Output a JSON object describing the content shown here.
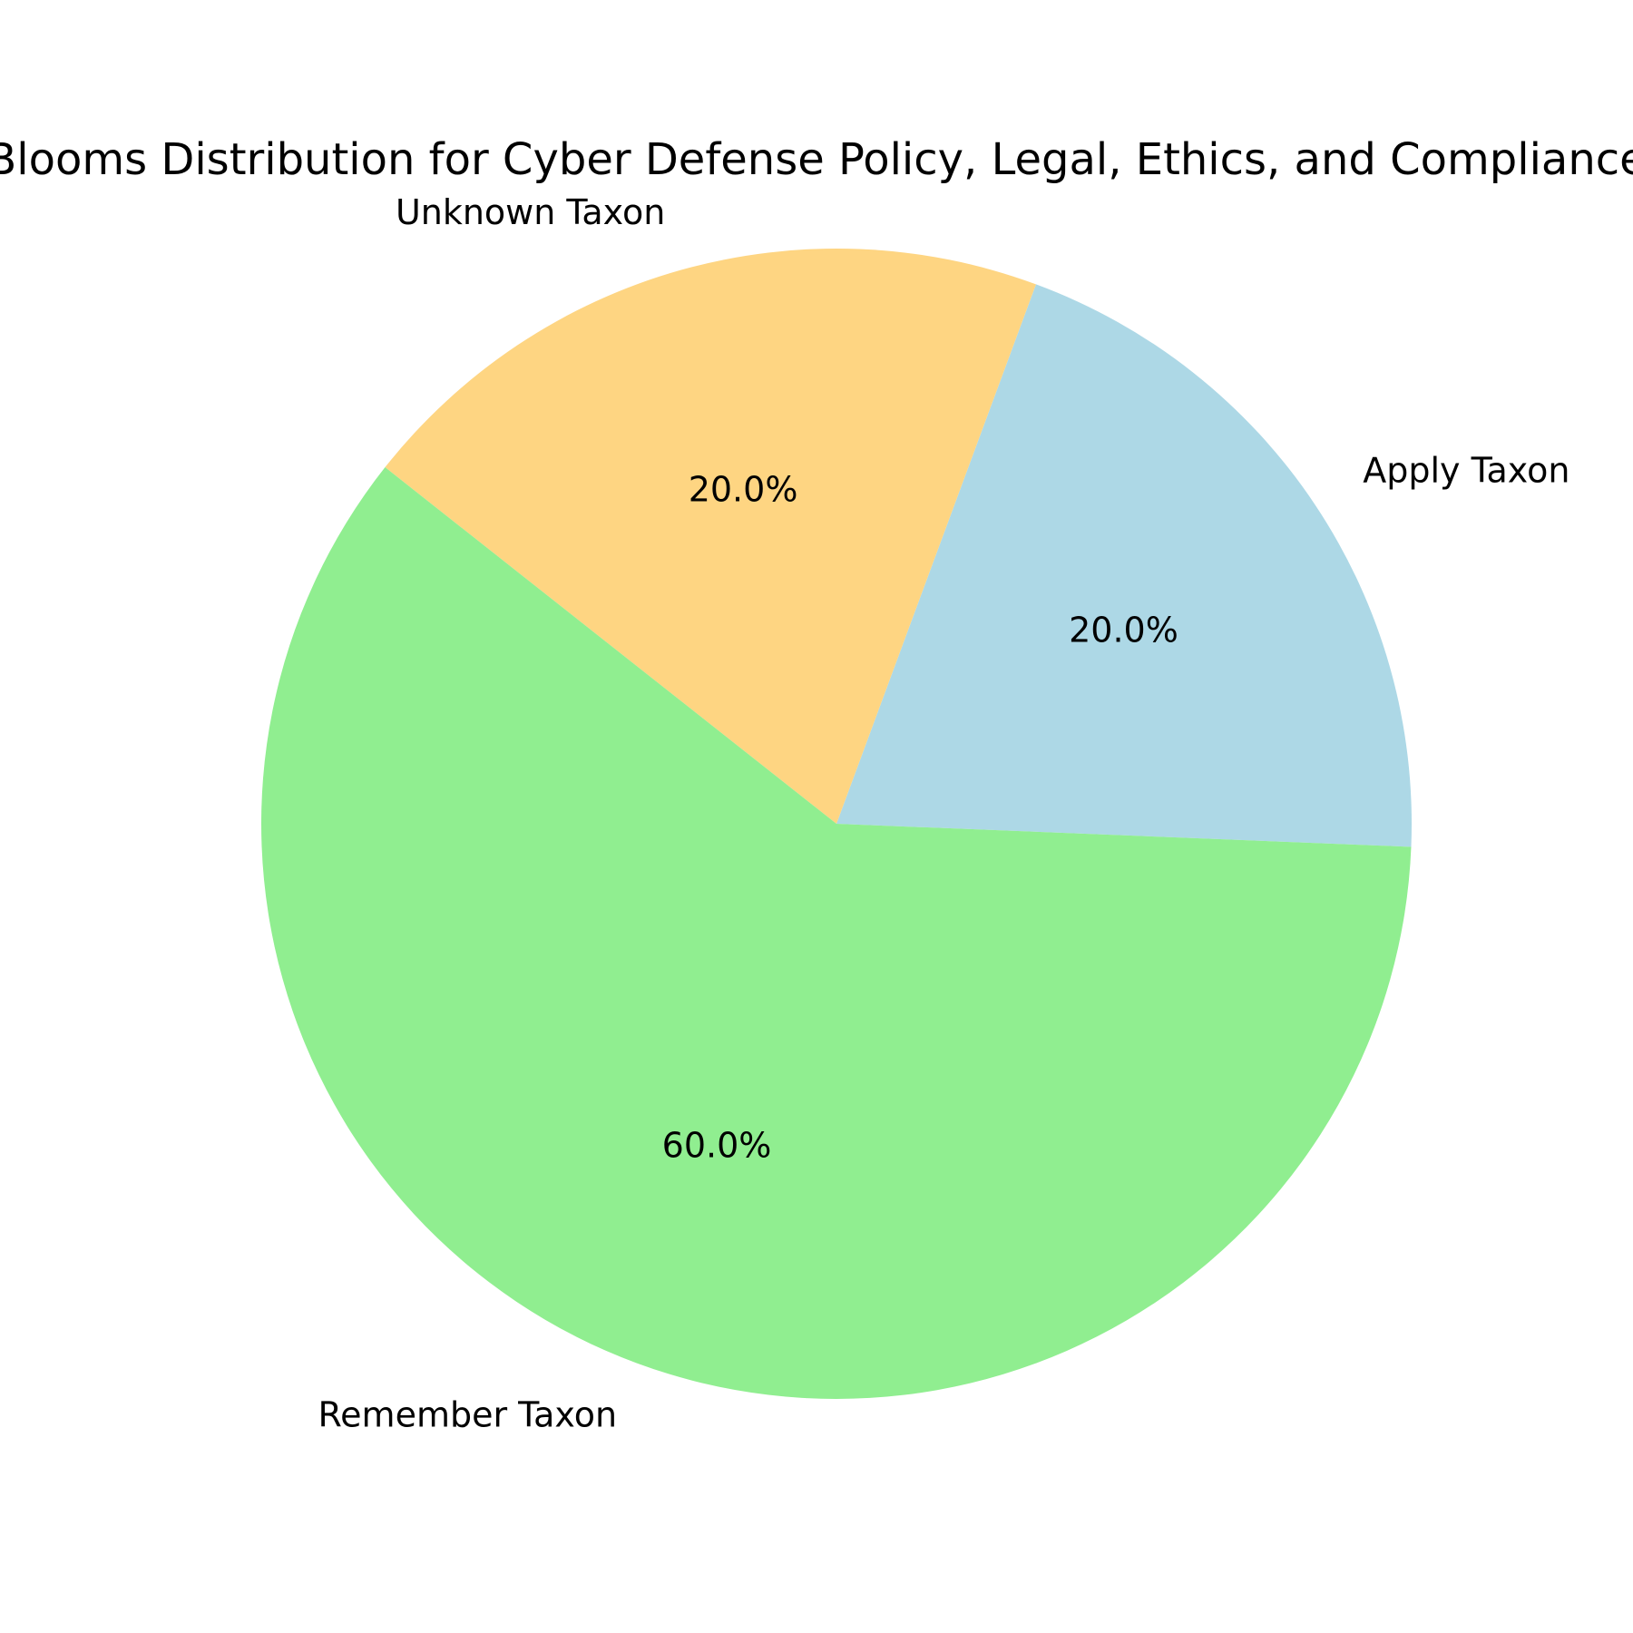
{
  "chart_data": {
    "type": "pie",
    "title": "Blooms Distribution for Cyber Defense Policy, Legal, Ethics, and Compliance",
    "slices": [
      {
        "label": "Apply Taxon",
        "value": 20.0,
        "pct_label": "20.0%",
        "color": "#add8e6"
      },
      {
        "label": "Unknown Taxon",
        "value": 20.0,
        "pct_label": "20.0%",
        "color": "#fed582"
      },
      {
        "label": "Remember Taxon",
        "value": 60.0,
        "pct_label": "60.0%",
        "color": "#90ee90"
      }
    ],
    "legend": "none"
  }
}
